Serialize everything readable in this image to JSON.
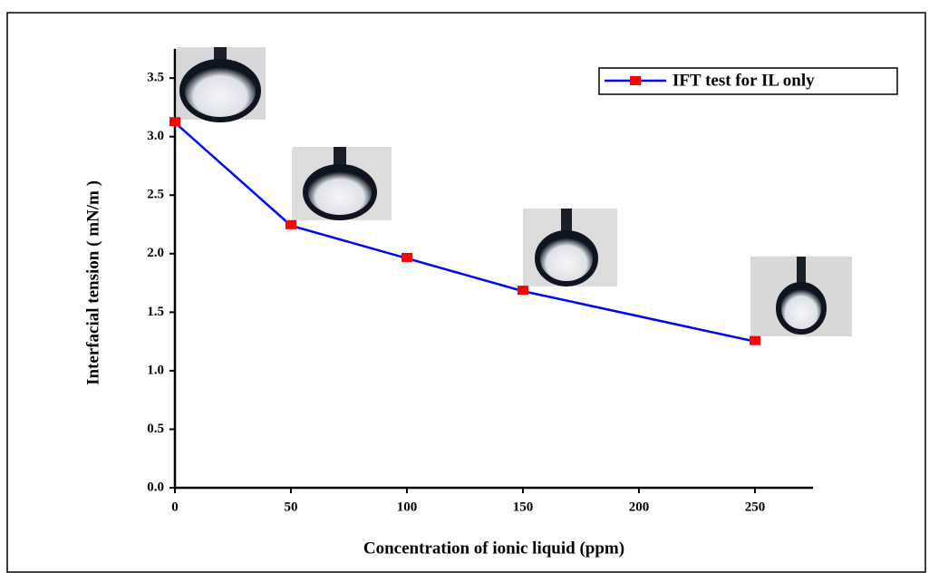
{
  "chart_data": {
    "type": "line",
    "x_label": "Concentration of ionic liquid (ppm)",
    "y_label": "Interfacial tension ( mN/m )",
    "x": [
      0,
      50,
      100,
      150,
      250
    ],
    "series": [
      {
        "name": "IFT test for IL only",
        "color": "#0000ff",
        "marker_color": "#ff0000",
        "values": [
          3.12,
          2.24,
          1.96,
          1.68,
          1.25
        ]
      }
    ],
    "xlim": [
      0,
      275
    ],
    "xticks": [
      0,
      50,
      100,
      150,
      200,
      250
    ],
    "ylim": [
      0,
      3.75
    ],
    "yticks": [
      {
        "value": 0,
        "label": "0.0"
      },
      {
        "value": 0.5,
        "label": "0.5"
      },
      {
        "value": 1,
        "label": "1.0"
      },
      {
        "value": 1.5,
        "label": "1.5"
      },
      {
        "value": 2,
        "label": "2.0"
      },
      {
        "value": 2.5,
        "label": "2.5"
      },
      {
        "value": 3,
        "label": "3.0"
      },
      {
        "value": 3.5,
        "label": "3.5"
      }
    ],
    "legend": "upper right"
  }
}
